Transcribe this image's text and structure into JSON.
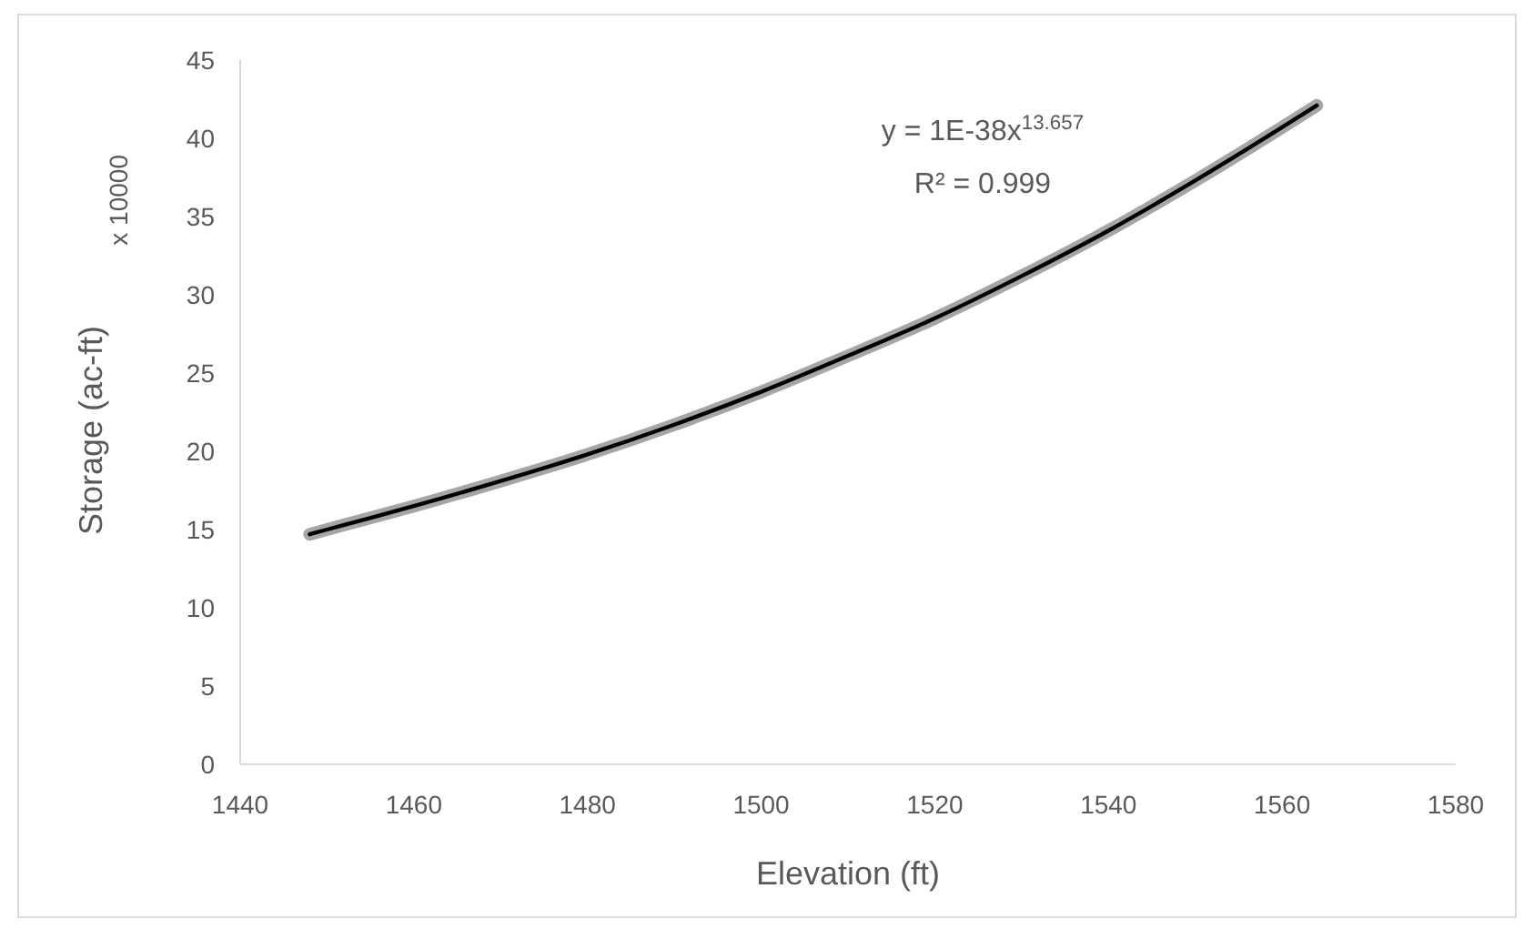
{
  "chart_data": {
    "type": "line",
    "xlabel": "Elevation (ft)",
    "ylabel": "Storage (ac-ft)",
    "annotations": [
      "x 10000",
      "y = 1E-38x$^{13.657}$",
      "R² = 0.999"
    ],
    "x": [
      1448,
      1452,
      1460,
      1470,
      1480,
      1490,
      1500,
      1510,
      1520,
      1530,
      1540,
      1550,
      1560,
      1564
    ],
    "series": [
      {
        "color": "#a6a6a6",
        "values": [
          14.7,
          15.3,
          16.5,
          18.1,
          19.8,
          21.7,
          23.8,
          26.1,
          28.5,
          31.2,
          34.1,
          37.3,
          40.7,
          42.1
        ]
      },
      {
        "color": "#000000",
        "values": [
          14.7,
          15.3,
          16.5,
          18.1,
          19.8,
          21.7,
          23.8,
          26.1,
          28.5,
          31.2,
          34.1,
          37.3,
          40.7,
          42.1
        ]
      }
    ],
    "xlim": [
      1440,
      1580
    ],
    "xticks": [
      1440,
      1460,
      1480,
      1500,
      1520,
      1540,
      1560,
      1580
    ],
    "ylim": [
      0,
      45
    ],
    "yticks": [
      0,
      5,
      10,
      15,
      20,
      25,
      30,
      35,
      40,
      45
    ],
    "grid": false
  }
}
